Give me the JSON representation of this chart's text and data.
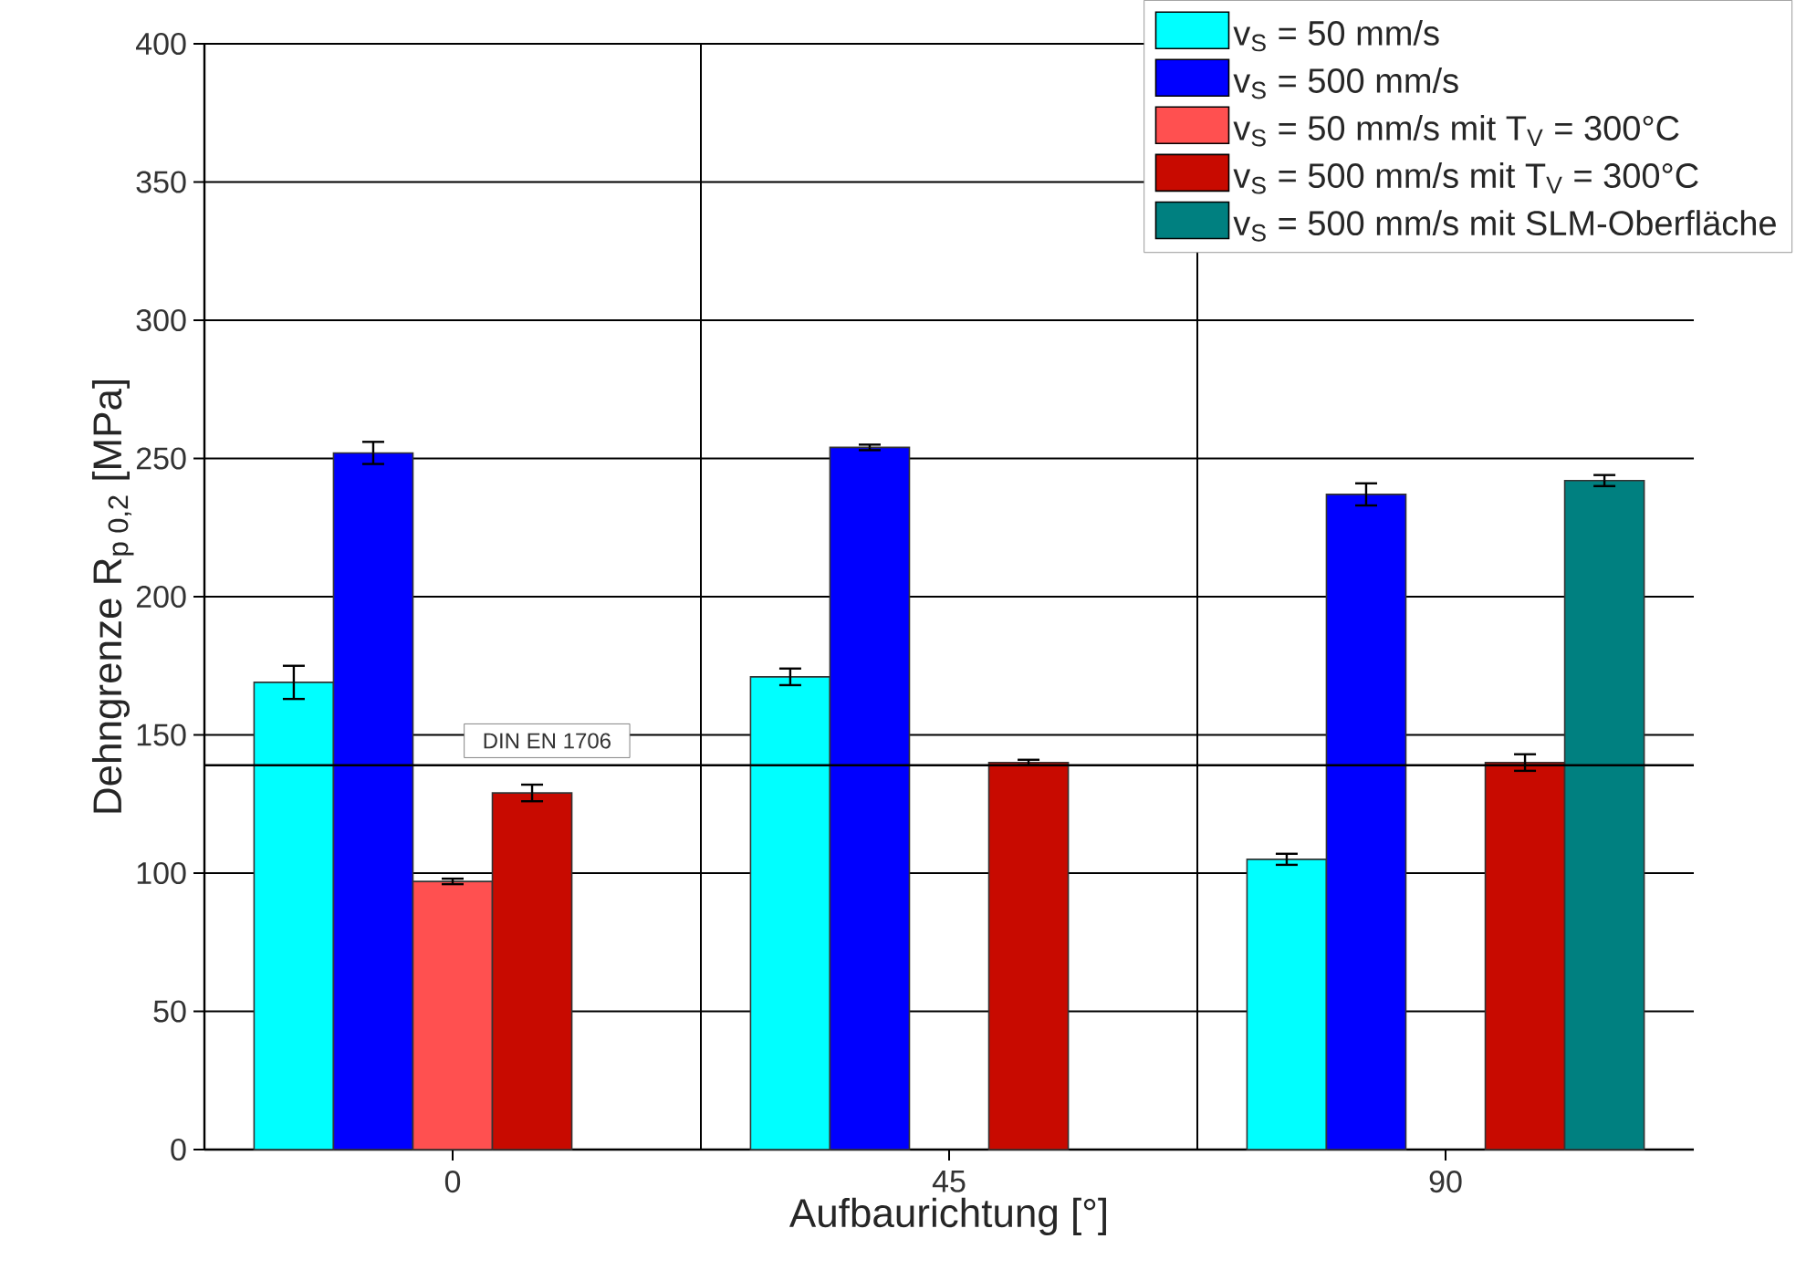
{
  "chart_data": {
    "type": "bar",
    "xlabel": "Aufbaurichtung [°]",
    "ylabel": "Dehngrenze R$_{p 0,2}$ [MPa]",
    "categories": [
      "0",
      "45",
      "90"
    ],
    "series": [
      {
        "name": "v$_{S}$ = 50 mm/s",
        "color": "#00ffff",
        "values": [
          169,
          171,
          105
        ],
        "errors": [
          6,
          3,
          2
        ]
      },
      {
        "name": "v$_{S}$ = 500 mm/s",
        "color": "#0000ff",
        "values": [
          252,
          254,
          237
        ],
        "errors": [
          4,
          1,
          4
        ]
      },
      {
        "name": "v$_{S}$ = 50 mm/s mit T$_{V}$ = 300°C",
        "color": "#ff5050",
        "values": [
          97,
          null,
          null
        ],
        "errors": [
          1,
          null,
          null
        ]
      },
      {
        "name": "v$_{S}$ = 500 mm/s mit T$_{V}$ = 300°C",
        "color": "#c80a00",
        "values": [
          129,
          140,
          140
        ],
        "errors": [
          3,
          1,
          3
        ]
      },
      {
        "name": "v$_{S}$ = 500 mm/s mit SLM-Oberfläche",
        "color": "#008080",
        "values": [
          null,
          null,
          242
        ],
        "errors": [
          null,
          null,
          2
        ]
      }
    ],
    "ylim": [
      0,
      400
    ],
    "yticks": [
      0,
      50,
      100,
      150,
      200,
      250,
      300,
      350,
      400
    ],
    "ref_lines": [
      {
        "axis": "y",
        "value": 139,
        "label": "DIN EN 1706"
      }
    ],
    "grid": true,
    "legend": "top right"
  }
}
